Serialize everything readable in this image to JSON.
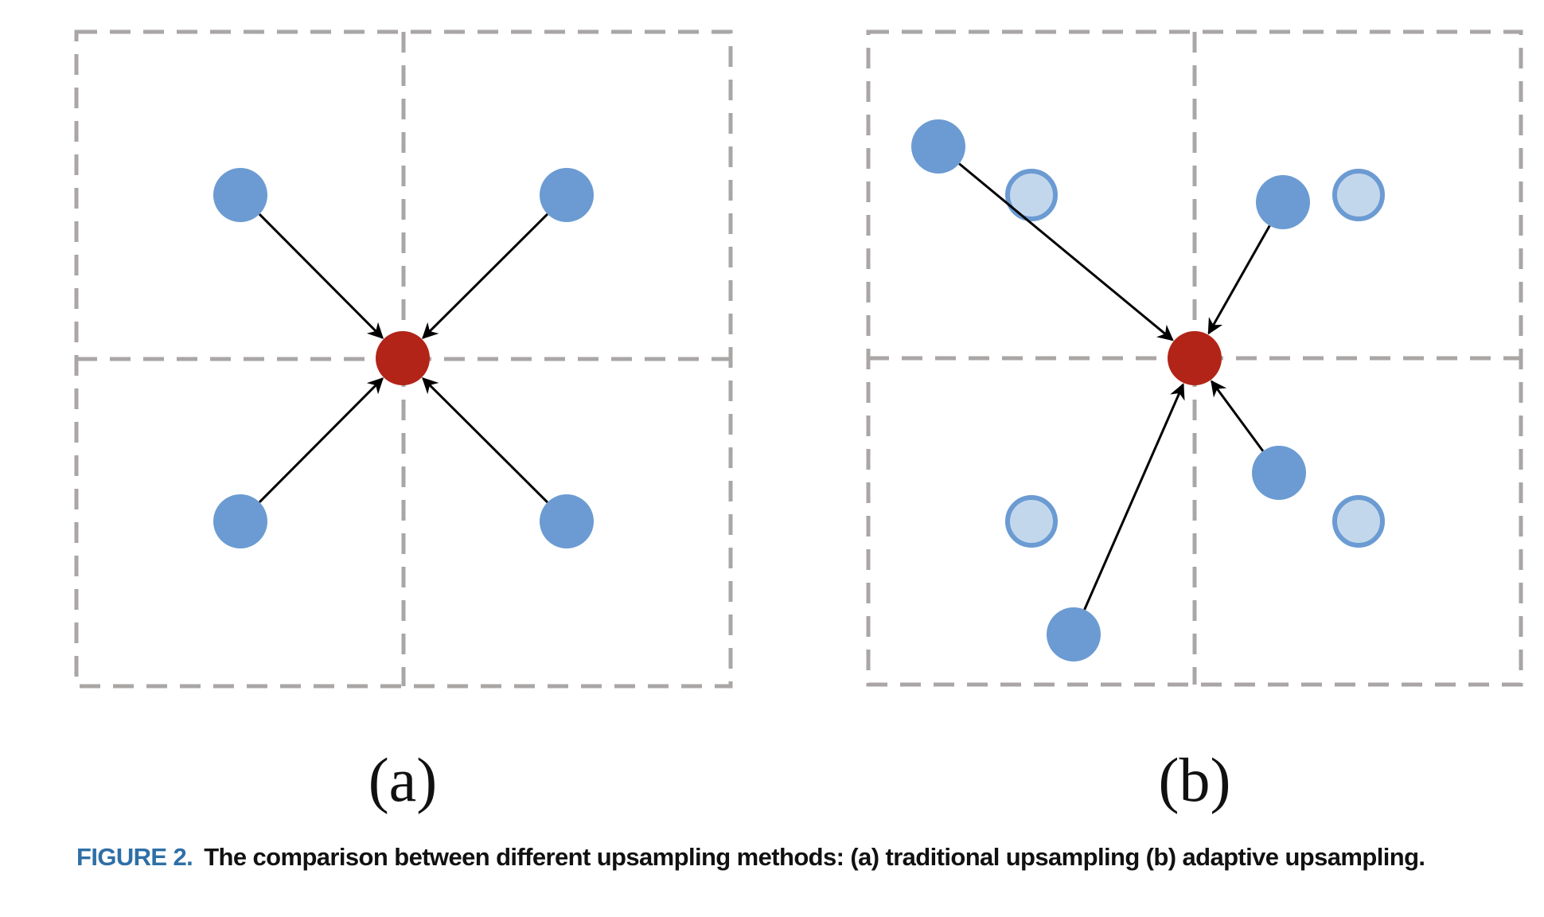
{
  "panels": [
    {
      "label": "(a)",
      "name": "traditional"
    },
    {
      "label": "(b)",
      "name": "adaptive"
    }
  ],
  "caption": {
    "figure_number": "FIGURE 2.",
    "text": "The comparison between different upsampling methods: (a) traditional upsampling (b) adaptive upsampling."
  },
  "colors": {
    "grid": "#aaa6a6",
    "source_point": "#6b9bd2",
    "original_point_fill": "#c3d7ec",
    "target_point": "#b22418",
    "arrow": "#000000",
    "figure_number": "#2e6fa7"
  }
}
